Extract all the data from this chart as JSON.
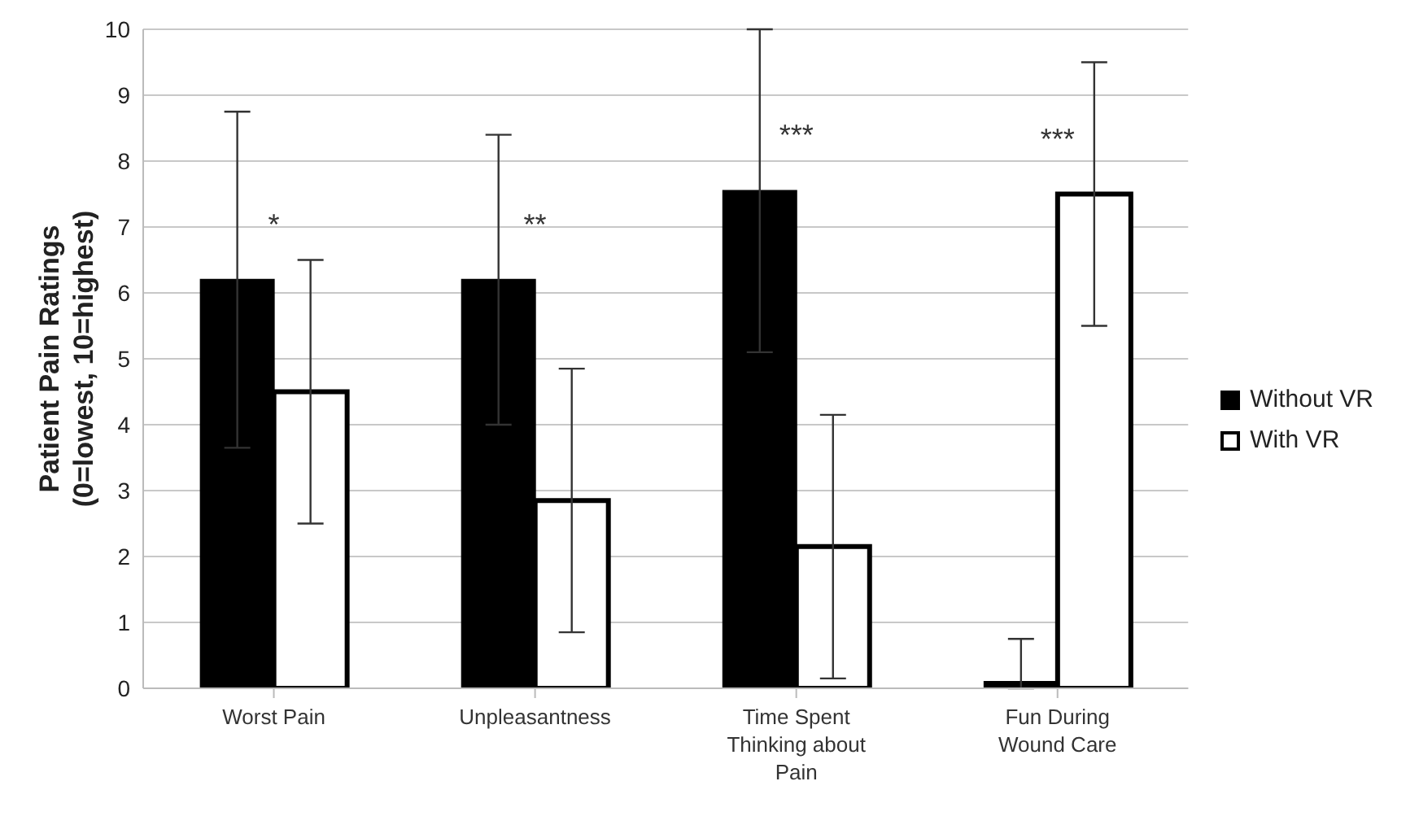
{
  "chart_data": {
    "type": "bar",
    "ylabel": "Patient Pain Ratings\n(0=lowest, 10=highest)",
    "categories": [
      "Worst Pain",
      "Unpleasantness",
      "Time Spent Thinking about Pain",
      "Fun During Wound Care"
    ],
    "series": [
      {
        "name": "Without VR",
        "color": "#000000",
        "values": [
          6.2,
          6.2,
          7.55,
          0.1
        ],
        "errors": [
          [
            3.65,
            8.75
          ],
          [
            4.0,
            8.4
          ],
          [
            5.1,
            10
          ],
          [
            0,
            0.75
          ]
        ]
      },
      {
        "name": "With VR",
        "color": "#ffffff",
        "values": [
          4.5,
          2.85,
          2.15,
          7.5
        ],
        "errors": [
          [
            2.5,
            6.5
          ],
          [
            0.85,
            4.85
          ],
          [
            0.15,
            4.15
          ],
          [
            5.5,
            9.5
          ]
        ]
      }
    ],
    "ylim": [
      0,
      10
    ],
    "yticks": [
      0,
      1,
      2,
      3,
      4,
      5,
      6,
      7,
      8,
      9,
      10
    ],
    "grid": "y",
    "legend": "right",
    "annotations": [
      "*",
      "**",
      "***",
      "***"
    ]
  }
}
